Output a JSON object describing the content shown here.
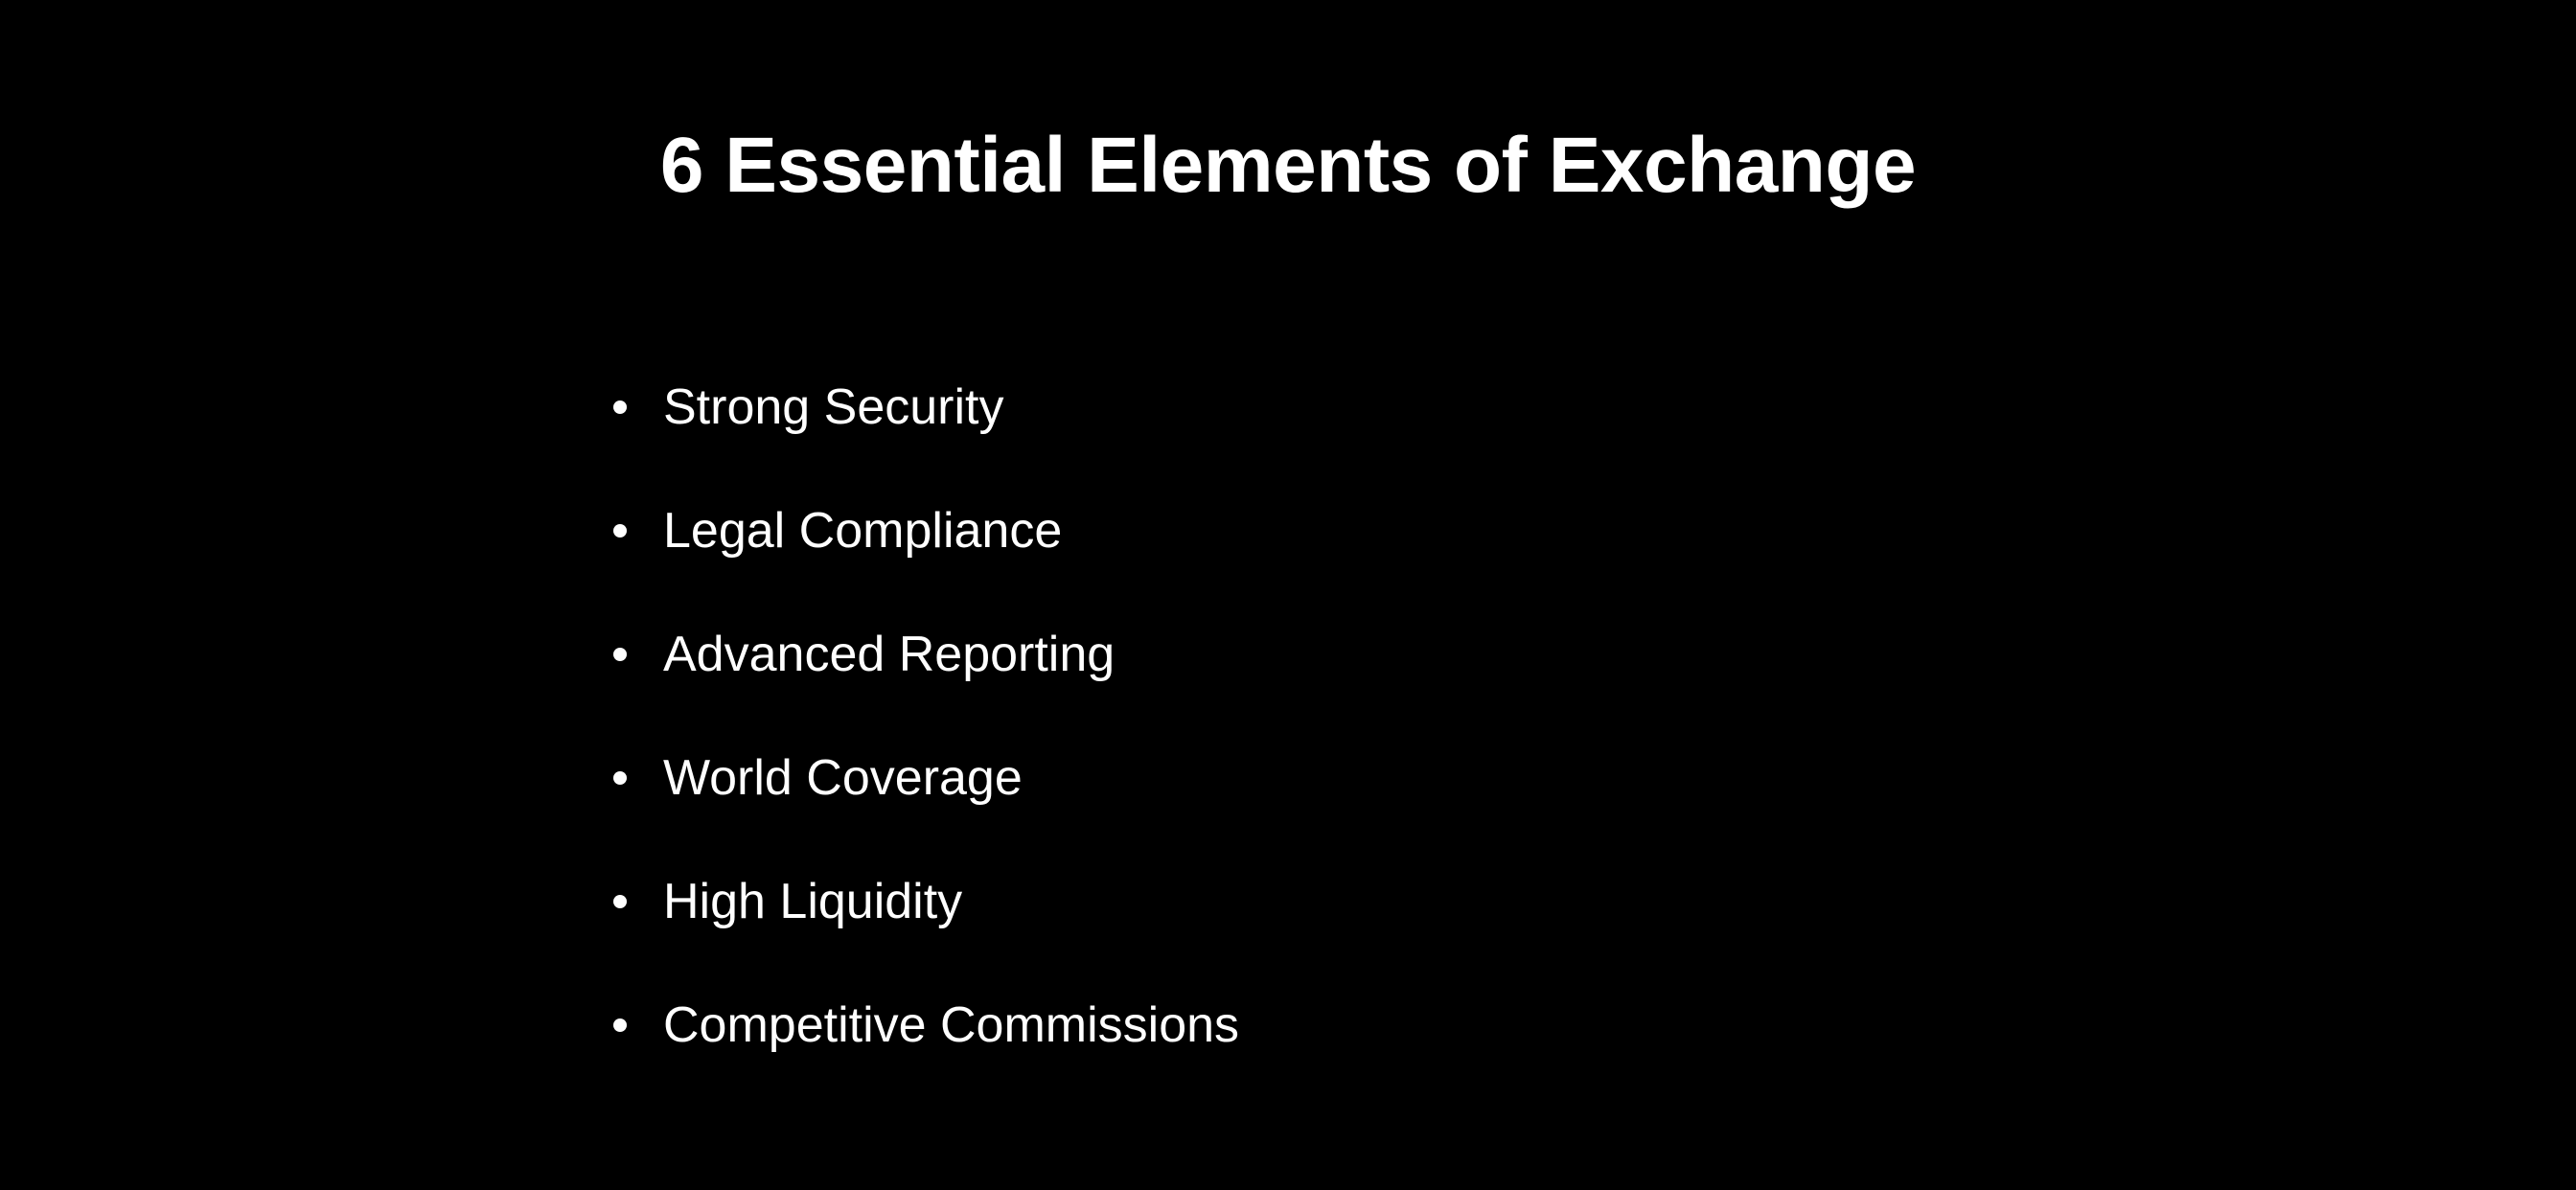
{
  "slide": {
    "title": "6 Essential Elements of Exchange",
    "bullets": [
      "Strong Security",
      "Legal Compliance",
      "Advanced Reporting",
      "World Coverage",
      "High Liquidity",
      "Competitive Commissions"
    ]
  },
  "colors": {
    "background": "#000000",
    "text": "#ffffff"
  }
}
